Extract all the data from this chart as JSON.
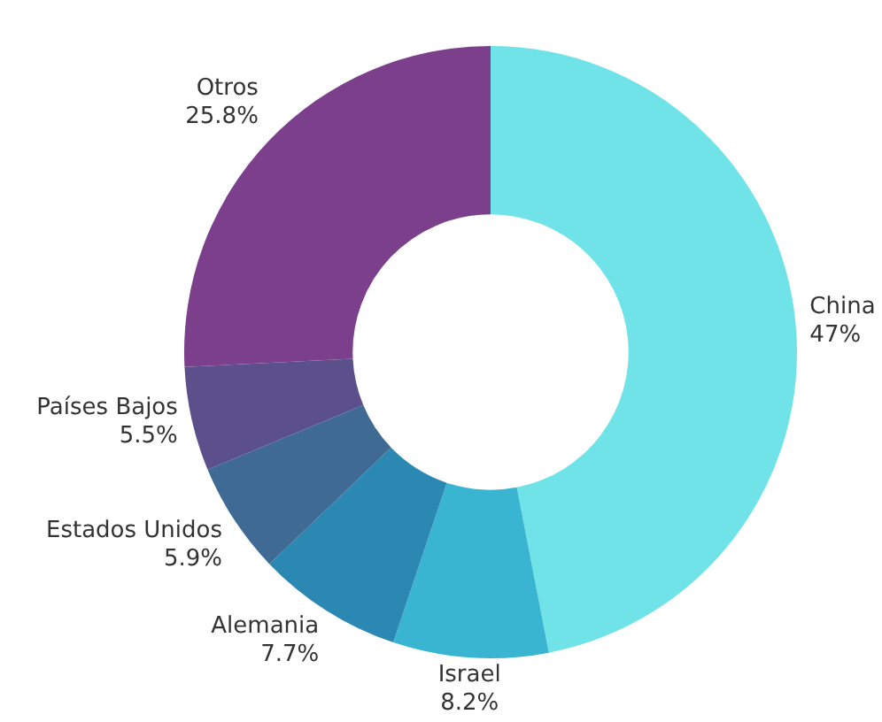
{
  "chart_data": {
    "type": "donut",
    "categories": [
      "China",
      "Israel",
      "Alemania",
      "Estados Unidos",
      "Países Bajos",
      "Otros"
    ],
    "values": [
      47,
      8.2,
      7.7,
      5.9,
      5.5,
      25.8
    ],
    "value_labels": [
      "47%",
      "8.2%",
      "7.7%",
      "5.9%",
      "5.5%",
      "25.8%"
    ],
    "colors": [
      "#6fe3e8",
      "#3ab5d1",
      "#2a88b3",
      "#3f6a93",
      "#5b4f8c",
      "#7b3f8c"
    ],
    "legend": false
  }
}
